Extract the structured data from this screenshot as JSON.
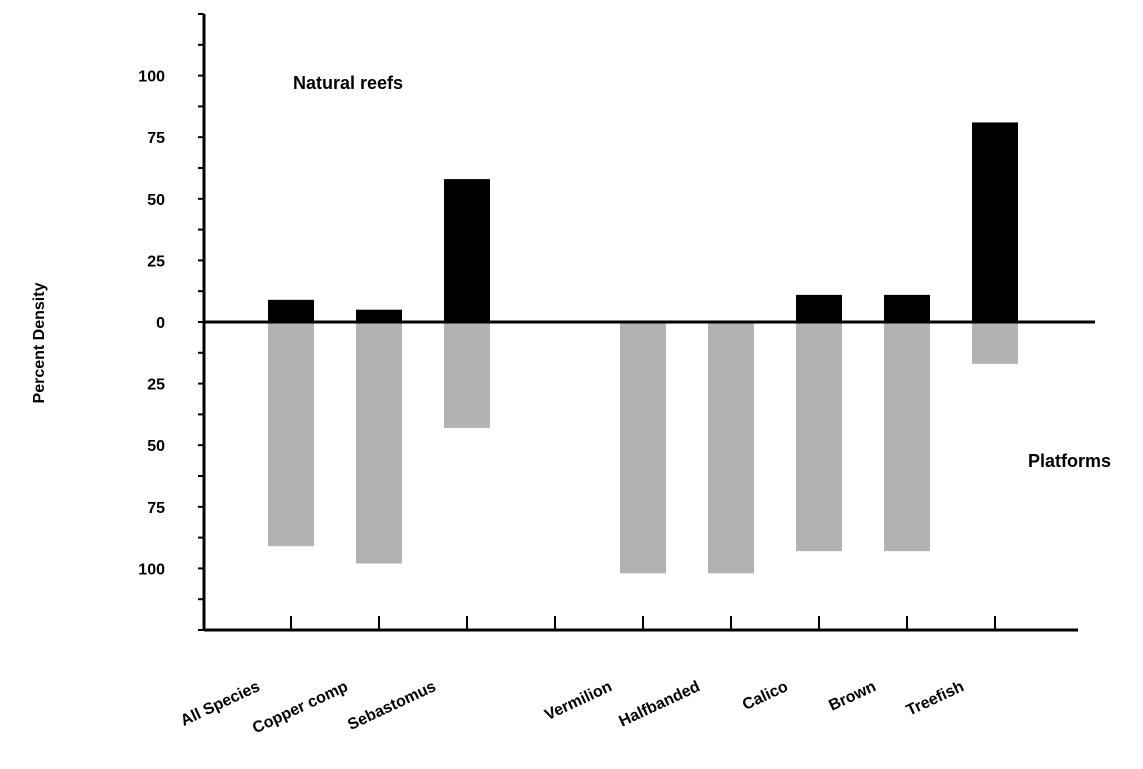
{
  "chart_data": {
    "type": "bar",
    "ylabel": "Percent  Density",
    "xlabel": "",
    "ylim": [
      -125,
      125
    ],
    "y_ticks": [
      {
        "value": 100,
        "label": "100"
      },
      {
        "value": 75,
        "label": "75"
      },
      {
        "value": 50,
        "label": "50"
      },
      {
        "value": 25,
        "label": "25"
      },
      {
        "value": 0,
        "label": "0"
      },
      {
        "value": -25,
        "label": "25"
      },
      {
        "value": -50,
        "label": "50"
      },
      {
        "value": -75,
        "label": "75"
      },
      {
        "value": -100,
        "label": "100"
      }
    ],
    "categories": [
      "All  Species",
      "Copper  comp",
      "Sebastomus",
      "",
      "Vermilion",
      "Halfbanded",
      "Calico",
      "Brown",
      "Treefish"
    ],
    "series": [
      {
        "name": "Natural reefs",
        "color": "#000000",
        "direction": "up",
        "values": [
          9,
          5,
          58,
          null,
          0,
          0,
          11,
          11,
          81
        ]
      },
      {
        "name": "Platforms",
        "color": "#b3b3b3",
        "direction": "down",
        "values": [
          91,
          98,
          43,
          null,
          102,
          102,
          93,
          93,
          17
        ]
      }
    ],
    "annotations": {
      "top": "Natural reefs",
      "bottom": "Platforms"
    },
    "grid": false,
    "legend": "none"
  }
}
